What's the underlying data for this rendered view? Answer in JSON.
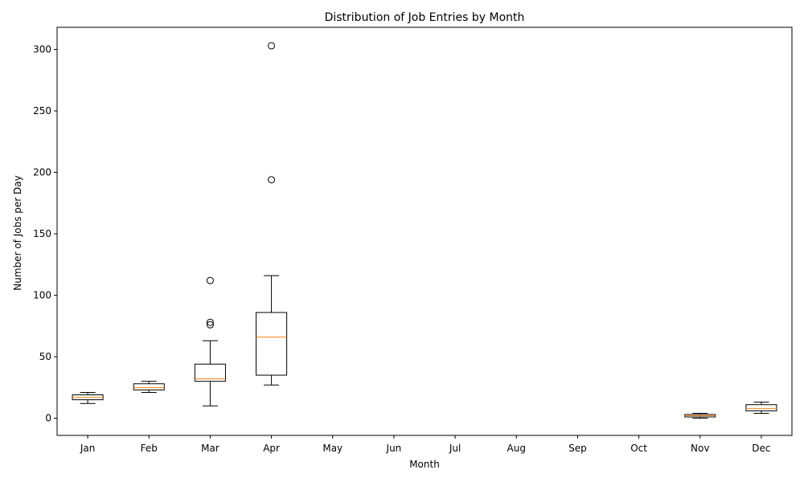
{
  "chart_data": {
    "type": "boxplot",
    "title": "Distribution of Job Entries by Month",
    "xlabel": "Month",
    "ylabel": "Number of Jobs per Day",
    "ylim": [
      -14,
      318
    ],
    "yticks": [
      0,
      50,
      100,
      150,
      200,
      250,
      300
    ],
    "categories": [
      "Jan",
      "Feb",
      "Mar",
      "Apr",
      "May",
      "Jun",
      "Jul",
      "Aug",
      "Sep",
      "Oct",
      "Nov",
      "Dec"
    ],
    "grid": false,
    "colors": {
      "box": "#000000",
      "median": "#ff7f0e",
      "outlier": "#000000"
    },
    "boxes": [
      {
        "category": "Jan",
        "whisker_low": 12,
        "q1": 15,
        "median": 17,
        "q3": 19,
        "whisker_high": 21,
        "outliers": []
      },
      {
        "category": "Feb",
        "whisker_low": 21,
        "q1": 23,
        "median": 25,
        "q3": 28,
        "whisker_high": 30,
        "outliers": []
      },
      {
        "category": "Mar",
        "whisker_low": 10,
        "q1": 30,
        "median": 32,
        "q3": 44,
        "whisker_high": 63,
        "outliers": [
          76,
          78,
          112
        ]
      },
      {
        "category": "Apr",
        "whisker_low": 27,
        "q1": 35,
        "median": 66,
        "q3": 86,
        "whisker_high": 116,
        "outliers": [
          194,
          303
        ]
      },
      {
        "category": "May",
        "empty": true
      },
      {
        "category": "Jun",
        "empty": true
      },
      {
        "category": "Jul",
        "empty": true
      },
      {
        "category": "Aug",
        "empty": true
      },
      {
        "category": "Sep",
        "empty": true
      },
      {
        "category": "Oct",
        "empty": true
      },
      {
        "category": "Nov",
        "whisker_low": 0,
        "q1": 1,
        "median": 2,
        "q3": 3,
        "whisker_high": 4,
        "outliers": []
      },
      {
        "category": "Dec",
        "whisker_low": 4,
        "q1": 6,
        "median": 8,
        "q3": 11,
        "whisker_high": 13,
        "outliers": []
      }
    ]
  }
}
